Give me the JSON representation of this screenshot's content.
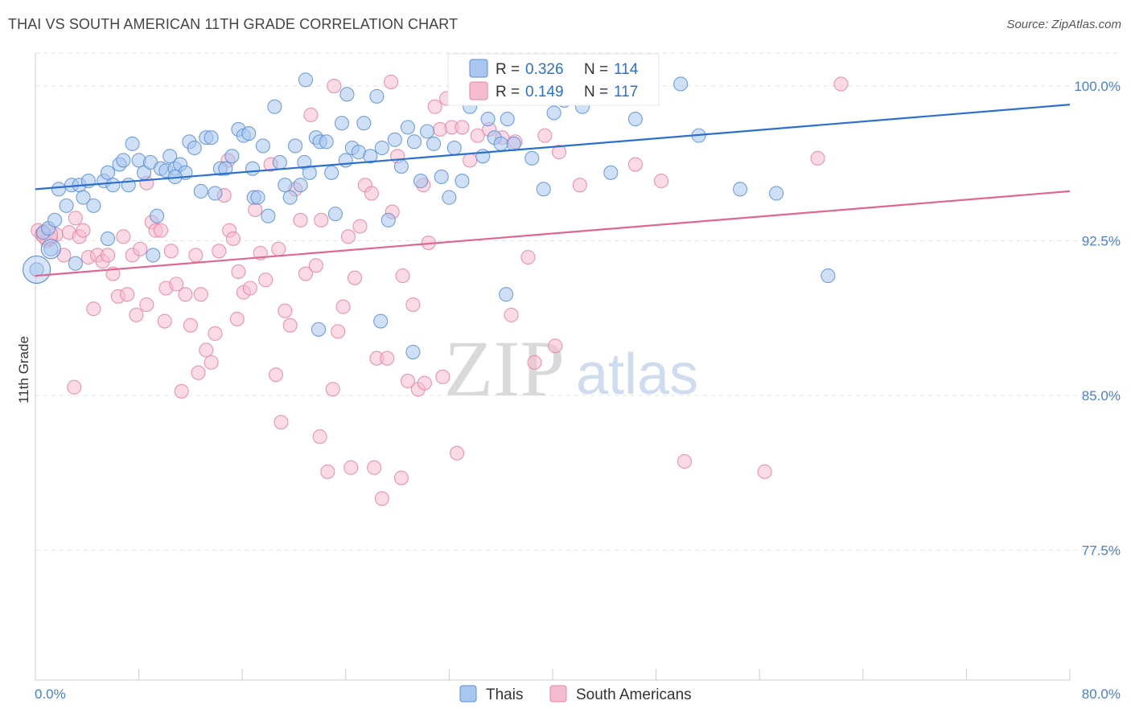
{
  "title": "THAI VS SOUTH AMERICAN 11TH GRADE CORRELATION CHART",
  "source": "Source: ZipAtlas.com",
  "watermark": {
    "zip": "ZIP",
    "atlas": "atlas"
  },
  "colors": {
    "thai_fill": "#a8c6ef",
    "thai_stroke": "#5b8fd8",
    "thai_line": "#2b6fd0",
    "sa_fill": "#f5bccf",
    "sa_stroke": "#e8849f",
    "sa_line": "#e06691",
    "grid": "#e2e2e2",
    "tick_label": "#4a7fd0"
  },
  "legend_stats": [
    {
      "r_label": "R =",
      "r_value": "0.326",
      "n_label": "N =",
      "n_value": "114"
    },
    {
      "r_label": "R =",
      "r_value": "0.149",
      "n_label": "N =",
      "n_value": "117"
    }
  ],
  "chart_data": {
    "type": "scatter",
    "title": "THAI VS SOUTH AMERICAN 11TH GRADE CORRELATION CHART",
    "xlabel": "",
    "ylabel": "11th Grade",
    "xlim": [
      0,
      80
    ],
    "ylim": [
      71.2,
      101.6
    ],
    "x_tick_labels": [
      "0.0%",
      "80.0%"
    ],
    "y_ticks": [
      77.5,
      85.0,
      92.5,
      100.0
    ],
    "y_tick_labels": [
      "77.5%",
      "85.0%",
      "92.5%",
      "100.0%"
    ],
    "grid": "horizontal dashed",
    "legend_position": "bottom-center",
    "series": [
      {
        "name": "Thais",
        "color": "#a8c6ef",
        "trend": {
          "x": [
            0,
            80
          ],
          "y": [
            95.0,
            99.1
          ]
        },
        "points": [
          [
            0.1,
            91.1
          ],
          [
            0.6,
            92.9
          ],
          [
            1.0,
            93.1
          ],
          [
            1.2,
            92.1
          ],
          [
            1.5,
            93.5
          ],
          [
            1.8,
            95.0
          ],
          [
            2.4,
            94.2
          ],
          [
            2.8,
            95.2
          ],
          [
            3.1,
            91.4
          ],
          [
            3.4,
            95.2
          ],
          [
            3.7,
            94.6
          ],
          [
            4.1,
            95.4
          ],
          [
            4.5,
            94.2
          ],
          [
            5.3,
            95.4
          ],
          [
            5.6,
            95.8
          ],
          [
            6.0,
            95.2
          ],
          [
            6.5,
            96.2
          ],
          [
            6.8,
            96.4
          ],
          [
            7.2,
            95.2
          ],
          [
            7.5,
            97.2
          ],
          [
            8.0,
            96.4
          ],
          [
            8.4,
            95.8
          ],
          [
            8.9,
            96.3
          ],
          [
            9.1,
            91.8
          ],
          [
            9.4,
            93.7
          ],
          [
            9.7,
            96.0
          ],
          [
            10.1,
            95.9
          ],
          [
            10.4,
            96.6
          ],
          [
            10.8,
            96.0
          ],
          [
            11.2,
            96.2
          ],
          [
            11.6,
            95.8
          ],
          [
            11.9,
            97.3
          ],
          [
            12.3,
            97.0
          ],
          [
            12.8,
            94.9
          ],
          [
            13.2,
            97.5
          ],
          [
            13.6,
            97.5
          ],
          [
            13.9,
            94.8
          ],
          [
            14.3,
            96.0
          ],
          [
            14.7,
            96.0
          ],
          [
            15.2,
            96.6
          ],
          [
            15.7,
            97.9
          ],
          [
            16.1,
            97.6
          ],
          [
            16.5,
            97.7
          ],
          [
            16.9,
            94.6
          ],
          [
            17.2,
            94.6
          ],
          [
            17.6,
            97.1
          ],
          [
            18.0,
            93.7
          ],
          [
            18.5,
            99.0
          ],
          [
            18.9,
            96.3
          ],
          [
            19.3,
            95.2
          ],
          [
            19.7,
            94.6
          ],
          [
            20.1,
            97.1
          ],
          [
            20.5,
            95.2
          ],
          [
            20.8,
            96.3
          ],
          [
            21.2,
            95.8
          ],
          [
            21.7,
            97.5
          ],
          [
            22.0,
            97.3
          ],
          [
            22.5,
            97.3
          ],
          [
            22.9,
            95.8
          ],
          [
            23.2,
            93.8
          ],
          [
            23.7,
            98.2
          ],
          [
            24.1,
            99.6
          ],
          [
            24.5,
            97.0
          ],
          [
            25.0,
            96.8
          ],
          [
            25.4,
            98.2
          ],
          [
            25.9,
            96.6
          ],
          [
            26.4,
            99.5
          ],
          [
            26.8,
            97.0
          ],
          [
            27.3,
            93.5
          ],
          [
            27.8,
            97.4
          ],
          [
            28.3,
            96.1
          ],
          [
            28.8,
            98.0
          ],
          [
            29.3,
            97.3
          ],
          [
            29.8,
            95.4
          ],
          [
            30.3,
            97.8
          ],
          [
            30.8,
            97.2
          ],
          [
            31.4,
            95.6
          ],
          [
            32.0,
            94.6
          ],
          [
            32.4,
            97.0
          ],
          [
            33.0,
            95.4
          ],
          [
            33.6,
            99.0
          ],
          [
            34.2,
            100.0
          ],
          [
            34.6,
            96.6
          ],
          [
            35.0,
            98.4
          ],
          [
            35.5,
            97.5
          ],
          [
            36.0,
            97.2
          ],
          [
            36.5,
            98.4
          ],
          [
            37.0,
            97.2
          ],
          [
            37.6,
            100.1
          ],
          [
            38.4,
            96.5
          ],
          [
            39.0,
            99.8
          ],
          [
            39.3,
            95.0
          ],
          [
            39.8,
            99.4
          ],
          [
            40.1,
            98.7
          ],
          [
            41.5,
            100.1
          ],
          [
            42.3,
            99.0
          ],
          [
            44.5,
            95.8
          ],
          [
            46.4,
            98.4
          ],
          [
            47.3,
            99.4
          ],
          [
            49.9,
            100.1
          ],
          [
            51.3,
            97.6
          ],
          [
            54.5,
            95.0
          ],
          [
            57.3,
            94.8
          ],
          [
            61.3,
            90.8
          ],
          [
            40.9,
            99.3
          ],
          [
            43.1,
            100.2
          ],
          [
            45.6,
            100.0
          ],
          [
            26.7,
            88.6
          ],
          [
            21.9,
            88.2
          ],
          [
            29.2,
            87.1
          ],
          [
            20.9,
            100.3
          ],
          [
            36.4,
            89.9
          ],
          [
            10.8,
            95.6
          ],
          [
            16.8,
            96.0
          ],
          [
            5.6,
            92.6
          ],
          [
            24.0,
            96.4
          ]
        ]
      },
      {
        "name": "South Americans",
        "color": "#f5bccf",
        "trend": {
          "x": [
            0,
            80
          ],
          "y": [
            90.8,
            94.9
          ]
        },
        "points": [
          [
            0.2,
            93.0
          ],
          [
            0.5,
            92.8
          ],
          [
            0.9,
            92.5
          ],
          [
            1.2,
            92.6
          ],
          [
            1.6,
            92.8
          ],
          [
            2.2,
            91.8
          ],
          [
            2.6,
            92.9
          ],
          [
            3.1,
            93.6
          ],
          [
            3.4,
            92.7
          ],
          [
            3.7,
            93.0
          ],
          [
            4.1,
            91.7
          ],
          [
            4.5,
            89.2
          ],
          [
            4.8,
            91.8
          ],
          [
            5.2,
            91.5
          ],
          [
            5.6,
            91.8
          ],
          [
            6.0,
            90.9
          ],
          [
            6.4,
            89.8
          ],
          [
            6.8,
            92.7
          ],
          [
            7.1,
            89.9
          ],
          [
            7.5,
            91.8
          ],
          [
            7.8,
            88.9
          ],
          [
            8.1,
            92.1
          ],
          [
            8.6,
            89.4
          ],
          [
            9.0,
            93.4
          ],
          [
            9.3,
            93.0
          ],
          [
            9.7,
            93.0
          ],
          [
            10.1,
            90.2
          ],
          [
            10.5,
            92.0
          ],
          [
            10.9,
            90.4
          ],
          [
            11.3,
            85.2
          ],
          [
            11.6,
            89.9
          ],
          [
            12.0,
            88.4
          ],
          [
            12.4,
            91.8
          ],
          [
            12.8,
            89.9
          ],
          [
            13.2,
            87.2
          ],
          [
            13.6,
            86.6
          ],
          [
            13.9,
            88.0
          ],
          [
            14.2,
            92.0
          ],
          [
            14.6,
            94.7
          ],
          [
            15.0,
            93.0
          ],
          [
            15.3,
            92.6
          ],
          [
            15.7,
            91.0
          ],
          [
            16.1,
            90.0
          ],
          [
            16.6,
            90.2
          ],
          [
            17.0,
            94.0
          ],
          [
            17.4,
            91.9
          ],
          [
            17.8,
            90.6
          ],
          [
            18.2,
            96.2
          ],
          [
            18.6,
            86.0
          ],
          [
            19.0,
            83.7
          ],
          [
            19.3,
            89.1
          ],
          [
            19.7,
            88.4
          ],
          [
            20.1,
            95.0
          ],
          [
            20.5,
            93.5
          ],
          [
            20.9,
            90.9
          ],
          [
            21.3,
            98.6
          ],
          [
            21.7,
            91.3
          ],
          [
            22.1,
            93.5
          ],
          [
            22.6,
            81.3
          ],
          [
            23.0,
            85.3
          ],
          [
            23.4,
            88.1
          ],
          [
            23.8,
            89.3
          ],
          [
            24.2,
            92.7
          ],
          [
            24.7,
            90.7
          ],
          [
            25.1,
            93.2
          ],
          [
            25.5,
            95.2
          ],
          [
            26.0,
            94.8
          ],
          [
            26.4,
            86.8
          ],
          [
            26.8,
            80.0
          ],
          [
            27.2,
            86.8
          ],
          [
            27.6,
            93.9
          ],
          [
            28.0,
            96.6
          ],
          [
            28.4,
            90.8
          ],
          [
            28.8,
            85.7
          ],
          [
            29.2,
            89.4
          ],
          [
            29.6,
            85.3
          ],
          [
            30.0,
            95.2
          ],
          [
            30.4,
            92.4
          ],
          [
            30.9,
            99.0
          ],
          [
            31.3,
            97.9
          ],
          [
            31.8,
            99.4
          ],
          [
            32.2,
            98.0
          ],
          [
            32.6,
            82.2
          ],
          [
            33.0,
            98.0
          ],
          [
            33.6,
            96.4
          ],
          [
            34.2,
            97.6
          ],
          [
            35.1,
            97.9
          ],
          [
            36.1,
            97.5
          ],
          [
            37.1,
            97.3
          ],
          [
            38.1,
            91.7
          ],
          [
            38.6,
            86.6
          ],
          [
            39.4,
            97.6
          ],
          [
            40.5,
            96.8
          ],
          [
            42.1,
            95.2
          ],
          [
            46.4,
            96.2
          ],
          [
            48.4,
            95.4
          ],
          [
            50.2,
            81.8
          ],
          [
            62.3,
            100.1
          ],
          [
            56.4,
            81.3
          ],
          [
            60.5,
            96.5
          ],
          [
            27.5,
            100.2
          ],
          [
            23.1,
            100.0
          ],
          [
            24.4,
            81.5
          ],
          [
            26.2,
            81.5
          ],
          [
            30.1,
            85.6
          ],
          [
            18.8,
            92.1
          ],
          [
            15.6,
            88.7
          ],
          [
            10.0,
            88.6
          ],
          [
            12.6,
            86.1
          ],
          [
            22.0,
            83.0
          ],
          [
            28.3,
            81.0
          ],
          [
            31.5,
            85.9
          ],
          [
            3.0,
            85.4
          ],
          [
            8.6,
            95.3
          ],
          [
            14.9,
            96.4
          ],
          [
            40.2,
            87.4
          ],
          [
            36.8,
            88.9
          ]
        ]
      }
    ]
  },
  "bottom_legend": [
    {
      "label": "Thais"
    },
    {
      "label": "South Americans"
    }
  ]
}
